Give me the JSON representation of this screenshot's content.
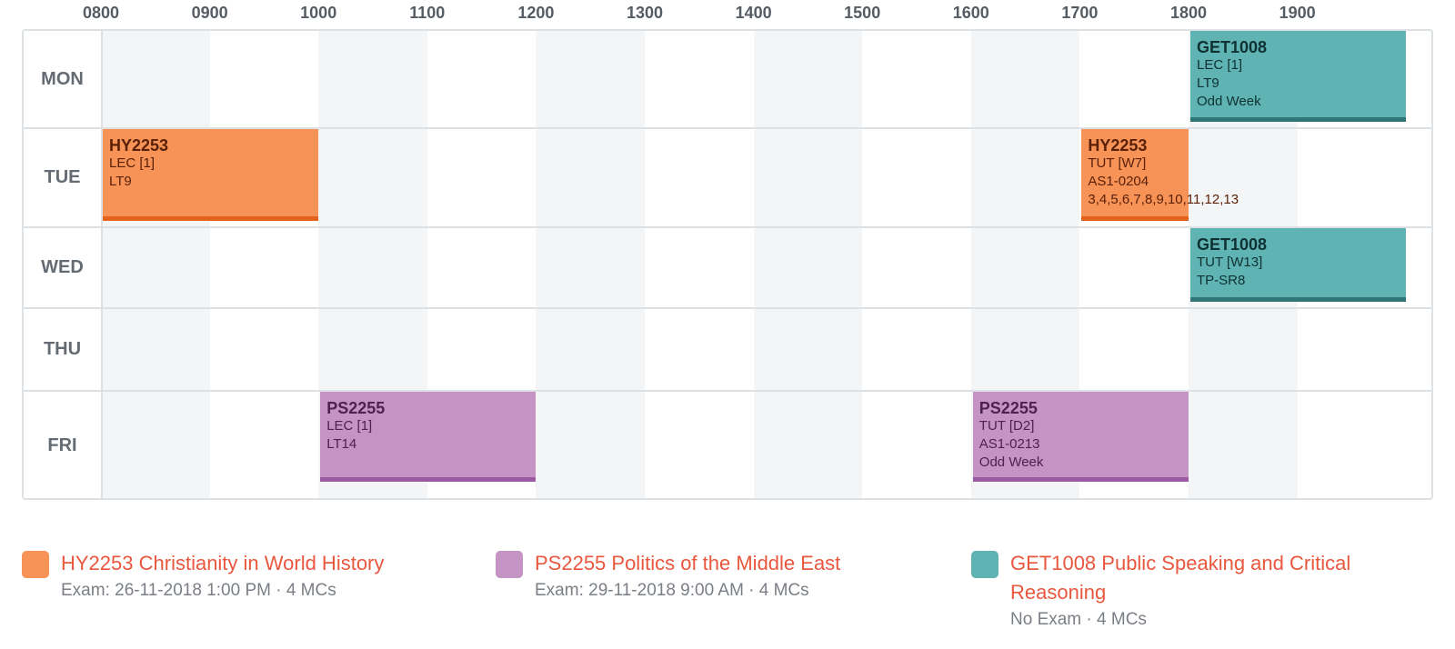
{
  "time_labels": [
    "0800",
    "0900",
    "1000",
    "1100",
    "1200",
    "1300",
    "1400",
    "1500",
    "1600",
    "1700",
    "1800",
    "1900"
  ],
  "days": [
    "MON",
    "TUE",
    "WED",
    "THU",
    "FRI"
  ],
  "colors": {
    "orange": "#f79356",
    "purple": "#c594c5",
    "teal": "#5fb3b3",
    "link": "#e8573e"
  },
  "lessons": [
    {
      "day": "MON",
      "start": "1800",
      "end": "2000",
      "color": "teal",
      "code": "GET1008",
      "lines": [
        "LEC [1]",
        "LT9",
        "Odd Week"
      ]
    },
    {
      "day": "TUE",
      "start": "0800",
      "end": "1000",
      "color": "orange",
      "code": "HY2253",
      "lines": [
        "LEC [1]",
        "LT9"
      ]
    },
    {
      "day": "TUE",
      "start": "1700",
      "end": "1800",
      "color": "orange",
      "code": "HY2253",
      "lines": [
        "TUT [W7]",
        "AS1-0204",
        "3,4,5,6,7,8,9,10,11,12,13"
      ]
    },
    {
      "day": "WED",
      "start": "1800",
      "end": "2000",
      "color": "teal",
      "code": "GET1008",
      "lines": [
        "TUT [W13]",
        "TP-SR8"
      ]
    },
    {
      "day": "FRI",
      "start": "1000",
      "end": "1200",
      "color": "purple",
      "code": "PS2255",
      "lines": [
        "LEC [1]",
        "LT14"
      ]
    },
    {
      "day": "FRI",
      "start": "1600",
      "end": "1800",
      "color": "purple",
      "code": "PS2255",
      "lines": [
        "TUT [D2]",
        "AS1-0213",
        "Odd Week"
      ]
    }
  ],
  "legend": [
    {
      "color": "orange",
      "title": "HY2253 Christianity in World History",
      "sub": "Exam: 26-11-2018 1:00 PM · 4 MCs"
    },
    {
      "color": "purple",
      "title": "PS2255 Politics of the Middle East",
      "sub": "Exam: 29-11-2018 9:00 AM · 4 MCs"
    },
    {
      "color": "teal",
      "title": "GET1008 Public Speaking and Critical Reasoning",
      "sub": "No Exam · 4 MCs"
    }
  ]
}
